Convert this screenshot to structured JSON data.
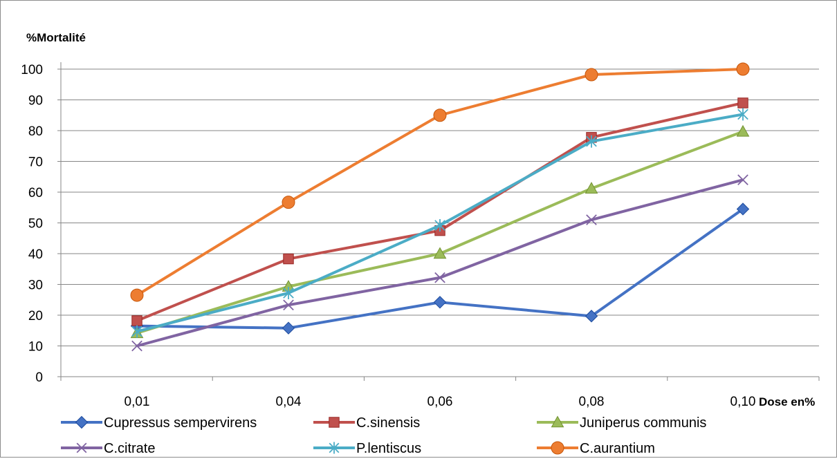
{
  "chart_data": {
    "type": "line",
    "title": "",
    "ylabel": "%Mortalité",
    "xlabel": "Dose en%",
    "categories": [
      "0,01",
      "0,04",
      "0,06",
      "0,08",
      "0,10"
    ],
    "ylim": [
      0,
      100
    ],
    "yticks": [
      0,
      10,
      20,
      30,
      40,
      50,
      60,
      70,
      80,
      90,
      100
    ],
    "grid": "horizontal",
    "legend_position": "bottom",
    "series": [
      {
        "name": "Cupressus sempervirens",
        "marker": "diamond",
        "color": "#4472C4",
        "values": [
          16.5,
          15.8,
          24.2,
          19.7,
          54.5
        ]
      },
      {
        "name": "C.sinensis",
        "marker": "square",
        "color": "#C0504D",
        "values": [
          18.2,
          38.3,
          47.5,
          77.8,
          89.0
        ]
      },
      {
        "name": "Juniperus communis",
        "marker": "triangle",
        "color": "#9BBB59",
        "values": [
          14.2,
          29.3,
          40.0,
          61.2,
          79.7
        ]
      },
      {
        "name": "C.citrate",
        "marker": "x",
        "color": "#8064A2",
        "values": [
          10.0,
          23.3,
          32.2,
          51.0,
          64.0
        ]
      },
      {
        "name": "P.lentiscus",
        "marker": "star",
        "color": "#4BACC6",
        "values": [
          14.7,
          27.2,
          49.2,
          76.5,
          85.3
        ]
      },
      {
        "name": "C.aurantium",
        "marker": "circle",
        "color": "#ED7D31",
        "values": [
          26.5,
          56.7,
          85.0,
          98.2,
          100.0
        ]
      }
    ]
  }
}
